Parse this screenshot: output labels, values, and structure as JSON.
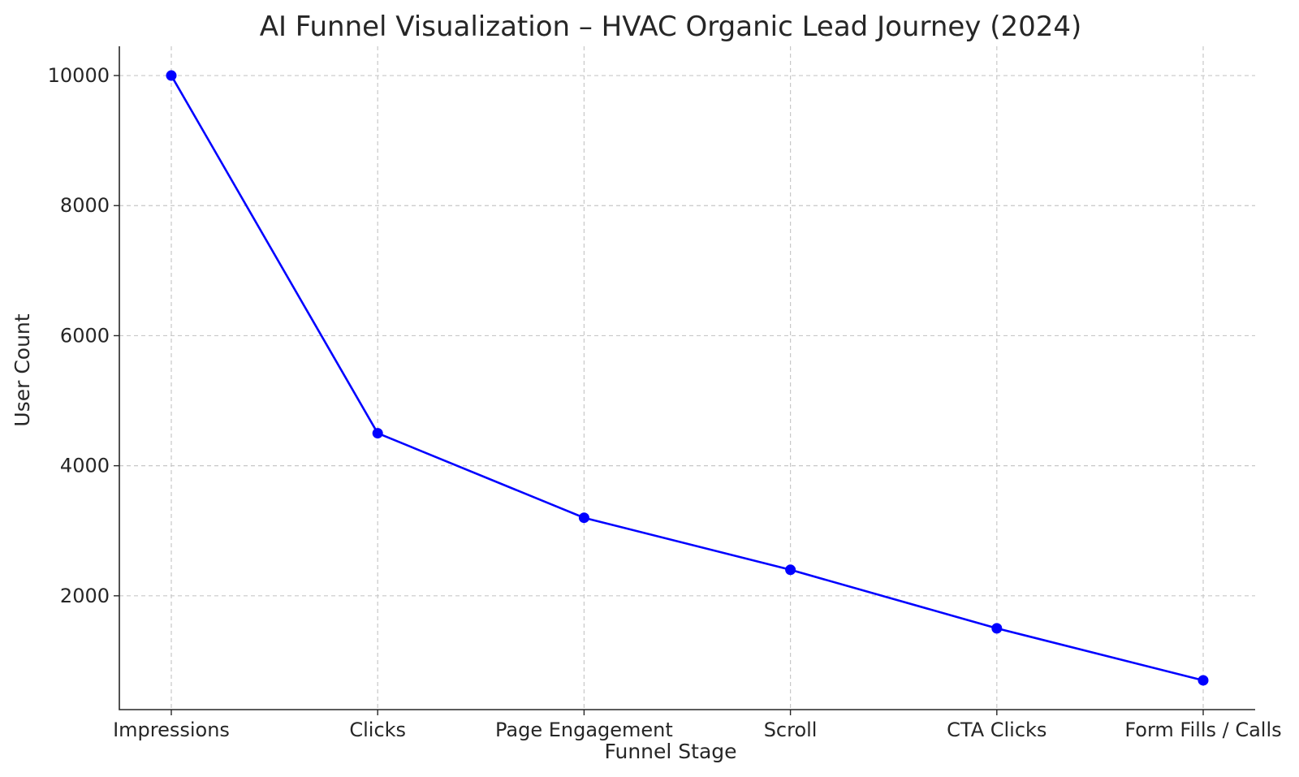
{
  "chart_data": {
    "type": "line",
    "title": "AI Funnel Visualization – HVAC Organic Lead Journey (2024)",
    "xlabel": "Funnel Stage",
    "ylabel": "User Count",
    "categories": [
      "Impressions",
      "Clicks",
      "Page Engagement",
      "Scroll",
      "CTA Clicks",
      "Form Fills / Calls"
    ],
    "series": [
      {
        "values": [
          10000,
          4500,
          3200,
          2400,
          1500,
          700
        ],
        "color": "#0000ff",
        "marker": "circle"
      }
    ],
    "yticks": [
      2000,
      4000,
      6000,
      8000,
      10000
    ],
    "ylim": [
      250,
      10450
    ],
    "grid": true
  }
}
